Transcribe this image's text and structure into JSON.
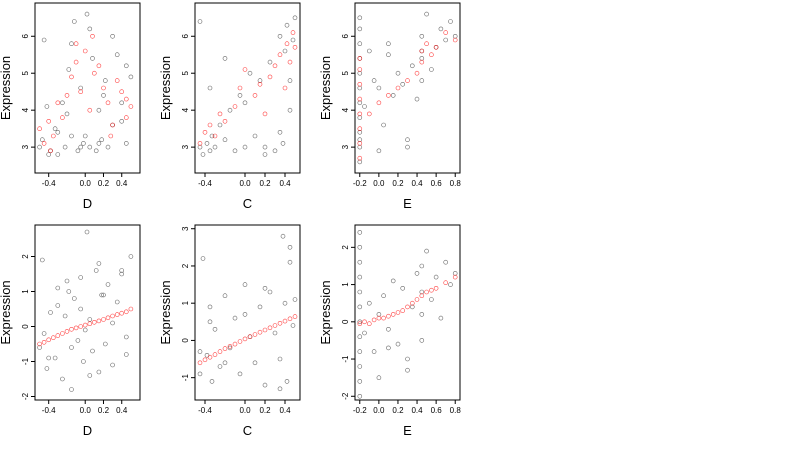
{
  "colors": {
    "observed": "#000000",
    "fitted": "#ff0000"
  },
  "chart_data": [
    {
      "type": "scatter",
      "xlabel": "D",
      "ylabel": "Expression",
      "xlim": [
        -0.55,
        0.6
      ],
      "ylim": [
        2.3,
        6.9
      ],
      "xticks": [
        -0.4,
        0.0,
        0.2,
        0.4
      ],
      "xtick_labels": [
        "-0.4",
        "0.0",
        "0.2",
        "0.4"
      ],
      "yticks": [
        3,
        4,
        5,
        6
      ],
      "ytick_labels": [
        "3",
        "4",
        "5",
        "6"
      ],
      "series": [
        {
          "color": "observed",
          "x": [
            -0.5,
            -0.47,
            -0.42,
            -0.38,
            -0.33,
            -0.3,
            -0.25,
            -0.22,
            -0.18,
            -0.15,
            -0.12,
            -0.08,
            -0.05,
            -0.02,
            0.02,
            0.05,
            0.08,
            0.12,
            0.15,
            0.18,
            0.22,
            0.25,
            0.3,
            0.35,
            0.4,
            0.45,
            0.5,
            -0.45,
            -0.3,
            -0.15,
            -0.05,
            0.05,
            0.15,
            0.3,
            0.45,
            -0.4,
            -0.2,
            0.0,
            0.2,
            0.4
          ],
          "y": [
            3.0,
            3.2,
            4.1,
            2.9,
            3.5,
            2.8,
            4.2,
            3.0,
            5.1,
            3.3,
            6.4,
            2.9,
            4.6,
            3.1,
            6.6,
            3.0,
            5.4,
            2.9,
            4.0,
            3.2,
            4.8,
            3.0,
            3.6,
            5.5,
            4.2,
            3.1,
            4.9,
            5.9,
            3.4,
            5.8,
            3.0,
            6.2,
            3.1,
            6.0,
            5.2,
            2.8,
            3.9,
            3.3,
            4.4,
            3.7
          ]
        },
        {
          "color": "fitted",
          "x": [
            -0.5,
            -0.45,
            -0.4,
            -0.35,
            -0.3,
            -0.25,
            -0.2,
            -0.15,
            -0.1,
            -0.05,
            0.0,
            0.05,
            0.1,
            0.15,
            0.2,
            0.25,
            0.3,
            0.35,
            0.4,
            0.45,
            0.5,
            -0.38,
            -0.1,
            0.08,
            0.28,
            0.45
          ],
          "y": [
            3.5,
            3.1,
            3.7,
            3.3,
            4.2,
            3.8,
            4.4,
            4.9,
            5.3,
            4.5,
            5.6,
            4.0,
            5.0,
            5.2,
            4.6,
            4.2,
            3.6,
            4.8,
            4.5,
            4.3,
            4.1,
            2.9,
            5.8,
            6.0,
            3.3,
            3.8
          ]
        }
      ]
    },
    {
      "type": "scatter",
      "xlabel": "C",
      "ylabel": "Expression",
      "xlim": [
        -0.5,
        0.55
      ],
      "ylim": [
        2.3,
        6.9
      ],
      "xticks": [
        -0.4,
        0.0,
        0.2,
        0.4
      ],
      "xtick_labels": [
        "-0.4",
        "0.0",
        "0.2",
        "0.4"
      ],
      "yticks": [
        3,
        4,
        5,
        6
      ],
      "ytick_labels": [
        "3",
        "4",
        "5",
        "6"
      ],
      "series": [
        {
          "color": "observed",
          "x": [
            -0.45,
            -0.42,
            -0.38,
            -0.35,
            -0.33,
            -0.3,
            -0.25,
            -0.2,
            -0.15,
            -0.1,
            -0.05,
            0.0,
            0.05,
            0.1,
            0.15,
            0.2,
            0.25,
            0.3,
            0.35,
            0.38,
            0.4,
            0.42,
            0.45,
            0.48,
            0.5,
            -0.45,
            -0.35,
            -0.2,
            0.0,
            0.2,
            0.35,
            0.45
          ],
          "y": [
            3.0,
            2.8,
            3.1,
            2.9,
            3.3,
            3.0,
            3.6,
            3.2,
            4.0,
            2.9,
            4.4,
            3.0,
            5.0,
            3.3,
            4.8,
            3.0,
            5.3,
            2.9,
            6.0,
            3.1,
            5.6,
            6.3,
            4.8,
            5.9,
            6.5,
            6.4,
            4.6,
            5.4,
            4.2,
            2.8,
            3.4,
            4.0
          ]
        },
        {
          "color": "fitted",
          "x": [
            -0.45,
            -0.4,
            -0.35,
            -0.3,
            -0.25,
            -0.2,
            -0.1,
            -0.05,
            0.0,
            0.1,
            0.15,
            0.2,
            0.25,
            0.3,
            0.35,
            0.4,
            0.42,
            0.45,
            0.48,
            0.5
          ],
          "y": [
            3.1,
            3.4,
            3.6,
            3.3,
            3.9,
            3.7,
            4.1,
            4.6,
            5.1,
            4.4,
            4.7,
            3.9,
            4.9,
            5.2,
            5.5,
            4.6,
            5.8,
            5.3,
            6.1,
            5.7
          ]
        }
      ]
    },
    {
      "type": "scatter",
      "xlabel": "E",
      "ylabel": "Expression",
      "xlim": [
        -0.25,
        0.85
      ],
      "ylim": [
        2.3,
        6.9
      ],
      "xticks": [
        -0.2,
        0.0,
        0.2,
        0.4,
        0.6,
        0.8
      ],
      "xtick_labels": [
        "-0.2",
        "0.0",
        "0.2",
        "0.4",
        "0.6",
        "0.8"
      ],
      "yticks": [
        3,
        4,
        5,
        6
      ],
      "ytick_labels": [
        "3",
        "4",
        "5",
        "6"
      ],
      "series": [
        {
          "color": "observed",
          "x": [
            -0.2,
            -0.2,
            -0.2,
            -0.2,
            -0.2,
            -0.2,
            -0.2,
            -0.2,
            -0.2,
            -0.2,
            -0.2,
            -0.2,
            -0.15,
            -0.1,
            -0.05,
            0.0,
            0.05,
            0.1,
            0.15,
            0.2,
            0.25,
            0.3,
            0.35,
            0.4,
            0.45,
            0.45,
            0.45,
            0.45,
            0.5,
            0.55,
            0.6,
            0.65,
            0.7,
            0.75,
            0.8,
            0.3,
            0.0,
            0.1
          ],
          "y": [
            2.6,
            3.0,
            3.4,
            3.8,
            4.2,
            4.6,
            5.0,
            5.4,
            5.8,
            6.2,
            6.5,
            3.2,
            4.1,
            5.6,
            4.8,
            2.9,
            3.6,
            5.5,
            4.4,
            5.0,
            4.7,
            3.0,
            5.2,
            4.3,
            5.6,
            6.0,
            5.4,
            4.8,
            6.6,
            5.1,
            5.7,
            6.2,
            5.9,
            6.4,
            6.0,
            3.2,
            4.6,
            5.8
          ]
        },
        {
          "color": "fitted",
          "x": [
            -0.2,
            -0.2,
            -0.2,
            -0.2,
            -0.2,
            -0.2,
            -0.2,
            -0.2,
            -0.1,
            0.0,
            0.1,
            0.2,
            0.3,
            0.4,
            0.45,
            0.45,
            0.5,
            0.55,
            0.6,
            0.7,
            0.8
          ],
          "y": [
            2.7,
            3.1,
            3.5,
            3.9,
            4.3,
            4.7,
            5.1,
            5.4,
            3.9,
            4.2,
            4.4,
            4.6,
            4.8,
            5.0,
            5.3,
            5.6,
            5.8,
            5.5,
            5.7,
            6.1,
            5.9
          ]
        }
      ]
    },
    {
      "type": "scatter",
      "xlabel": "D",
      "ylabel": "Expression",
      "xlim": [
        -0.55,
        0.6
      ],
      "ylim": [
        -2.1,
        2.9
      ],
      "xticks": [
        -0.4,
        0.0,
        0.2,
        0.4
      ],
      "xtick_labels": [
        "-0.4",
        "0.0",
        "0.2",
        "0.4"
      ],
      "yticks": [
        -2,
        -1,
        0,
        1,
        2
      ],
      "ytick_labels": [
        "-2",
        "-1",
        "0",
        "1",
        "2"
      ],
      "series": [
        {
          "color": "observed",
          "x": [
            -0.5,
            -0.47,
            -0.42,
            -0.38,
            -0.33,
            -0.3,
            -0.25,
            -0.22,
            -0.18,
            -0.15,
            -0.12,
            -0.08,
            -0.05,
            -0.02,
            0.02,
            0.05,
            0.08,
            0.12,
            0.15,
            0.18,
            0.22,
            0.25,
            0.3,
            0.35,
            0.4,
            0.45,
            0.5,
            -0.45,
            -0.3,
            -0.15,
            -0.05,
            0.05,
            0.15,
            0.3,
            0.45,
            -0.4,
            -0.2,
            0.0,
            0.2,
            0.4
          ],
          "y": [
            -0.6,
            1.9,
            -1.2,
            0.4,
            -0.9,
            0.6,
            -1.5,
            0.3,
            1.0,
            -1.8,
            0.8,
            -0.4,
            1.4,
            -1.0,
            2.7,
            0.2,
            -0.7,
            1.6,
            -1.3,
            0.9,
            -0.5,
            1.2,
            -1.1,
            0.7,
            1.5,
            -0.8,
            2.0,
            -0.2,
            1.1,
            -0.6,
            0.5,
            -1.4,
            1.8,
            0.1,
            -0.3,
            -0.9,
            1.3,
            -0.1,
            0.9,
            1.6
          ]
        },
        {
          "color": "fitted",
          "x": [
            -0.5,
            -0.45,
            -0.4,
            -0.35,
            -0.3,
            -0.25,
            -0.2,
            -0.15,
            -0.1,
            -0.05,
            0.0,
            0.05,
            0.1,
            0.15,
            0.2,
            0.25,
            0.3,
            0.35,
            0.4,
            0.45,
            0.5
          ],
          "y": [
            -0.5,
            -0.45,
            -0.38,
            -0.32,
            -0.26,
            -0.2,
            -0.14,
            -0.08,
            -0.04,
            0.0,
            0.04,
            0.08,
            0.12,
            0.16,
            0.2,
            0.25,
            0.3,
            0.34,
            0.38,
            0.42,
            0.5
          ]
        }
      ]
    },
    {
      "type": "scatter",
      "xlabel": "C",
      "ylabel": "Expression",
      "xlim": [
        -0.5,
        0.55
      ],
      "ylim": [
        -1.6,
        3.1
      ],
      "xticks": [
        -0.4,
        0.0,
        0.2,
        0.4
      ],
      "xtick_labels": [
        "-0.4",
        "0.0",
        "0.2",
        "0.4"
      ],
      "yticks": [
        -1,
        0,
        1,
        2,
        3
      ],
      "ytick_labels": [
        "-1",
        "0",
        "1",
        "2",
        "3"
      ],
      "series": [
        {
          "color": "observed",
          "x": [
            -0.45,
            -0.42,
            -0.38,
            -0.35,
            -0.33,
            -0.3,
            -0.25,
            -0.2,
            -0.15,
            -0.1,
            -0.05,
            0.0,
            0.05,
            0.1,
            0.15,
            0.2,
            0.25,
            0.3,
            0.35,
            0.38,
            0.4,
            0.42,
            0.45,
            0.48,
            0.5,
            -0.45,
            -0.35,
            -0.2,
            0.0,
            0.2,
            0.35,
            0.45
          ],
          "y": [
            -0.9,
            2.2,
            -0.4,
            0.9,
            -1.1,
            0.3,
            -0.7,
            1.2,
            -0.2,
            0.6,
            -0.9,
            1.5,
            0.1,
            -0.6,
            0.9,
            -1.2,
            1.3,
            0.2,
            -0.5,
            2.8,
            1.0,
            -1.1,
            2.1,
            0.4,
            1.1,
            -0.3,
            0.5,
            -0.6,
            0.7,
            1.4,
            -1.3,
            2.5
          ]
        },
        {
          "color": "fitted",
          "x": [
            -0.45,
            -0.4,
            -0.35,
            -0.3,
            -0.25,
            -0.2,
            -0.15,
            -0.1,
            -0.05,
            0.0,
            0.05,
            0.1,
            0.15,
            0.2,
            0.25,
            0.3,
            0.35,
            0.4,
            0.45,
            0.5
          ],
          "y": [
            -0.6,
            -0.52,
            -0.45,
            -0.38,
            -0.3,
            -0.22,
            -0.16,
            -0.1,
            -0.03,
            0.04,
            0.1,
            0.16,
            0.22,
            0.28,
            0.34,
            0.4,
            0.46,
            0.52,
            0.58,
            0.64
          ]
        }
      ]
    },
    {
      "type": "scatter",
      "xlabel": "E",
      "ylabel": "Expression",
      "xlim": [
        -0.25,
        0.85
      ],
      "ylim": [
        -2.1,
        2.6
      ],
      "xticks": [
        -0.2,
        0.0,
        0.2,
        0.4,
        0.6,
        0.8
      ],
      "xtick_labels": [
        "-0.2",
        "0.0",
        "0.2",
        "0.4",
        "0.6",
        "0.8"
      ],
      "yticks": [
        -2,
        -1,
        0,
        1,
        2
      ],
      "ytick_labels": [
        "-2",
        "-1",
        "0",
        "1",
        "2"
      ],
      "series": [
        {
          "color": "observed",
          "x": [
            -0.2,
            -0.2,
            -0.2,
            -0.2,
            -0.2,
            -0.2,
            -0.2,
            -0.2,
            -0.2,
            -0.2,
            -0.2,
            -0.2,
            -0.15,
            -0.1,
            -0.05,
            0.0,
            0.05,
            0.1,
            0.15,
            0.2,
            0.25,
            0.3,
            0.35,
            0.4,
            0.45,
            0.45,
            0.45,
            0.45,
            0.5,
            0.55,
            0.6,
            0.65,
            0.7,
            0.75,
            0.8,
            0.3,
            0.0,
            0.1
          ],
          "y": [
            -2.0,
            -1.6,
            -1.2,
            -0.8,
            -0.4,
            0.0,
            0.4,
            0.8,
            1.2,
            1.6,
            2.0,
            2.4,
            -0.3,
            0.5,
            -0.8,
            -1.5,
            0.7,
            -0.2,
            1.1,
            -0.6,
            0.9,
            -1.0,
            0.4,
            1.3,
            0.2,
            0.8,
            1.5,
            -0.5,
            1.9,
            0.6,
            1.2,
            0.1,
            1.6,
            1.0,
            1.3,
            -1.3,
            0.2,
            -0.7
          ]
        },
        {
          "color": "fitted",
          "x": [
            -0.2,
            -0.15,
            -0.1,
            -0.05,
            0.0,
            0.05,
            0.1,
            0.15,
            0.2,
            0.25,
            0.3,
            0.35,
            0.4,
            0.45,
            0.5,
            0.55,
            0.6,
            0.7,
            0.8
          ],
          "y": [
            -0.05,
            0.0,
            -0.05,
            0.05,
            0.1,
            0.1,
            0.15,
            0.2,
            0.25,
            0.3,
            0.4,
            0.5,
            0.6,
            0.7,
            0.8,
            0.85,
            0.9,
            1.05,
            1.2
          ]
        }
      ]
    }
  ]
}
